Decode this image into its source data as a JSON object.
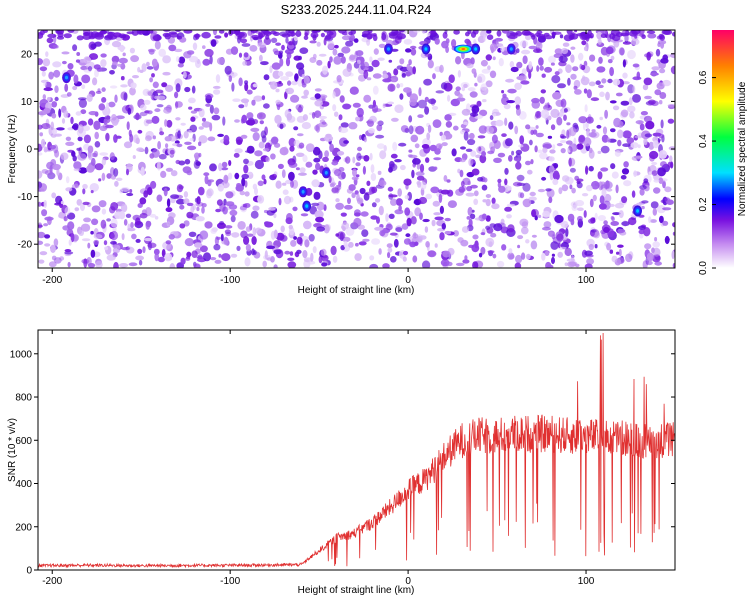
{
  "title": "S233.2025.244.11.04.R24",
  "chart_data": [
    {
      "type": "heatmap",
      "title": "S233.2025.244.11.04.R24",
      "xlabel": "Height of straight line (km)",
      "ylabel": "Frequency (Hz)",
      "xlim": [
        -208,
        150
      ],
      "ylim": [
        -25,
        25
      ],
      "x_ticks": [
        "-200",
        "-100",
        "0",
        "100"
      ],
      "x_tick_values": [
        -200,
        -100,
        0,
        100
      ],
      "y_ticks": [
        "-20",
        "-10",
        "0",
        "10",
        "20"
      ],
      "y_tick_values": [
        -20,
        -10,
        0,
        10,
        20
      ],
      "colorbar": {
        "label": "Normalized spectral amplitude",
        "range": [
          0.0,
          0.75
        ],
        "ticks": [
          "0.0",
          "0.2",
          "0.4",
          "0.6"
        ],
        "tick_values": [
          0.0,
          0.2,
          0.4,
          0.6
        ]
      },
      "hotspots": [
        {
          "x": 31,
          "y": 21,
          "value": 0.55
        },
        {
          "x": 38,
          "y": 21,
          "value": 0.22
        },
        {
          "x": 10,
          "y": 21,
          "value": 0.2
        },
        {
          "x": -11,
          "y": 21,
          "value": 0.18
        },
        {
          "x": 58,
          "y": 21,
          "value": 0.15
        },
        {
          "x": -57,
          "y": -12,
          "value": 0.22
        },
        {
          "x": -59,
          "y": -9,
          "value": 0.16
        },
        {
          "x": -46,
          "y": -5,
          "value": 0.16
        },
        {
          "x": 129,
          "y": -13,
          "value": 0.2
        },
        {
          "x": -192,
          "y": 15,
          "value": 0.18
        }
      ]
    },
    {
      "type": "line",
      "xlabel": "Height of straight line (km)",
      "ylabel": "SNR (10 * v/v)",
      "xlim": [
        -208,
        150
      ],
      "ylim": [
        0,
        1110
      ],
      "x_ticks": [
        "-200",
        "-100",
        "0",
        "100"
      ],
      "x_tick_values": [
        -200,
        -100,
        0,
        100
      ],
      "y_ticks": [
        "0",
        "200",
        "400",
        "600",
        "800",
        "1000"
      ],
      "y_tick_values": [
        0,
        200,
        400,
        600,
        800,
        1000
      ],
      "series": [
        {
          "name": "SNR",
          "color": "#e03030",
          "x": [
            -208,
            -180,
            -150,
            -120,
            -90,
            -60,
            -50,
            -45,
            -40,
            -30,
            -20,
            -10,
            0,
            10,
            20,
            30,
            40,
            50,
            60,
            70,
            80,
            90,
            100,
            110,
            120,
            130,
            140,
            150
          ],
          "values": [
            20,
            22,
            20,
            21,
            22,
            25,
            90,
            120,
            150,
            170,
            220,
            290,
            370,
            420,
            520,
            600,
            620,
            620,
            630,
            630,
            630,
            620,
            620,
            610,
            610,
            600,
            600,
            600
          ]
        }
      ]
    }
  ],
  "colors": {
    "line": "#e03030",
    "heat_low": "#ffffff",
    "heat_base": "#8a2be2"
  }
}
